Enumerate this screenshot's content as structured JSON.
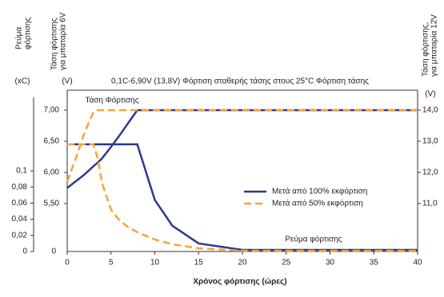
{
  "chart_data": {
    "type": "line",
    "title": "0,1C-6,90V (13,8V) Φόρτιση σταθερής τάσης στους 25°C Φόρτιση τάσης",
    "xlabel": "Χρόνος φόρτισης (ώρες)",
    "current_axis_title": [
      "Ρεύμα",
      "φόρτισης"
    ],
    "current_axis_unit": "(xC)",
    "y_axis_title": [
      "Τάση φόρτισης",
      "για μπαταρία 6V"
    ],
    "y_axis_unit": "(V)",
    "y2_axis_title": [
      "Τάση φόρτισης,",
      "για μπαταρία 12V"
    ],
    "y2_axis_unit": "(V)",
    "voltage_annotation": "Τάση Φόρτισης",
    "current_annotation": "Ρεύμα φόρτισης",
    "x": [
      0,
      1,
      2,
      3,
      3.5,
      4,
      5,
      6,
      7,
      8,
      10,
      12,
      15,
      20,
      25,
      30,
      40
    ],
    "xlim": [
      0,
      40
    ],
    "xticks": [
      0,
      5,
      10,
      15,
      20,
      25,
      30,
      35,
      40
    ],
    "ylim": [
      4.73,
      7.32
    ],
    "yticks": [
      {
        "value": 7,
        "label": "7,00"
      },
      {
        "value": 6.5,
        "label": "6,50"
      },
      {
        "value": 6,
        "label": "6,00"
      },
      {
        "value": 5.5,
        "label": "5,50"
      }
    ],
    "y_bottom_label": "0",
    "y2lim": [
      9.46,
      14.64
    ],
    "y2ticks": [
      {
        "value": 14,
        "label": "14,0"
      },
      {
        "value": 13,
        "label": "13,0"
      },
      {
        "value": 12,
        "label": "12,0"
      },
      {
        "value": 11,
        "label": "11,0"
      }
    ],
    "current_lim": [
      0,
      0.2
    ],
    "current_ticks": [
      {
        "value": 0.1,
        "label": "0,1"
      },
      {
        "value": 0.08,
        "label": "0,08"
      },
      {
        "value": 0.06,
        "label": "0,06"
      },
      {
        "value": 0.04,
        "label": "0,04"
      },
      {
        "value": 0.02,
        "label": "0,02"
      },
      0
    ],
    "series": [
      {
        "name": "Μετά από 100% εκφόρτιση",
        "color": "#2e3a8c",
        "dashed": false,
        "voltage": [
          5.75,
          5.86,
          5.97,
          6.1,
          6.16,
          6.23,
          6.41,
          6.6,
          6.8,
          7.0,
          7.0,
          7.0,
          7.0,
          7.0,
          7.0,
          7.0,
          7.0
        ],
        "current": [
          0.133,
          0.133,
          0.133,
          0.133,
          0.133,
          0.133,
          0.133,
          0.133,
          0.133,
          0.133,
          0.064,
          0.032,
          0.01,
          0.002,
          0.002,
          0.002,
          0.002
        ]
      },
      {
        "name": "Μετά από 50% εκφόρτιση",
        "color": "#f7a23b",
        "dashed": true,
        "voltage": [
          5.85,
          6.23,
          6.65,
          6.97,
          7.0,
          7.0,
          7.0,
          7.0,
          7.0,
          7.0,
          7.0,
          7.0,
          7.0,
          7.0,
          7.0,
          7.0,
          7.0
        ],
        "current": [
          0.133,
          0.133,
          0.133,
          0.133,
          0.115,
          0.084,
          0.052,
          0.038,
          0.03,
          0.024,
          0.015,
          0.009,
          0.004,
          0.001,
          0.001,
          0.001,
          0.001
        ]
      }
    ]
  }
}
